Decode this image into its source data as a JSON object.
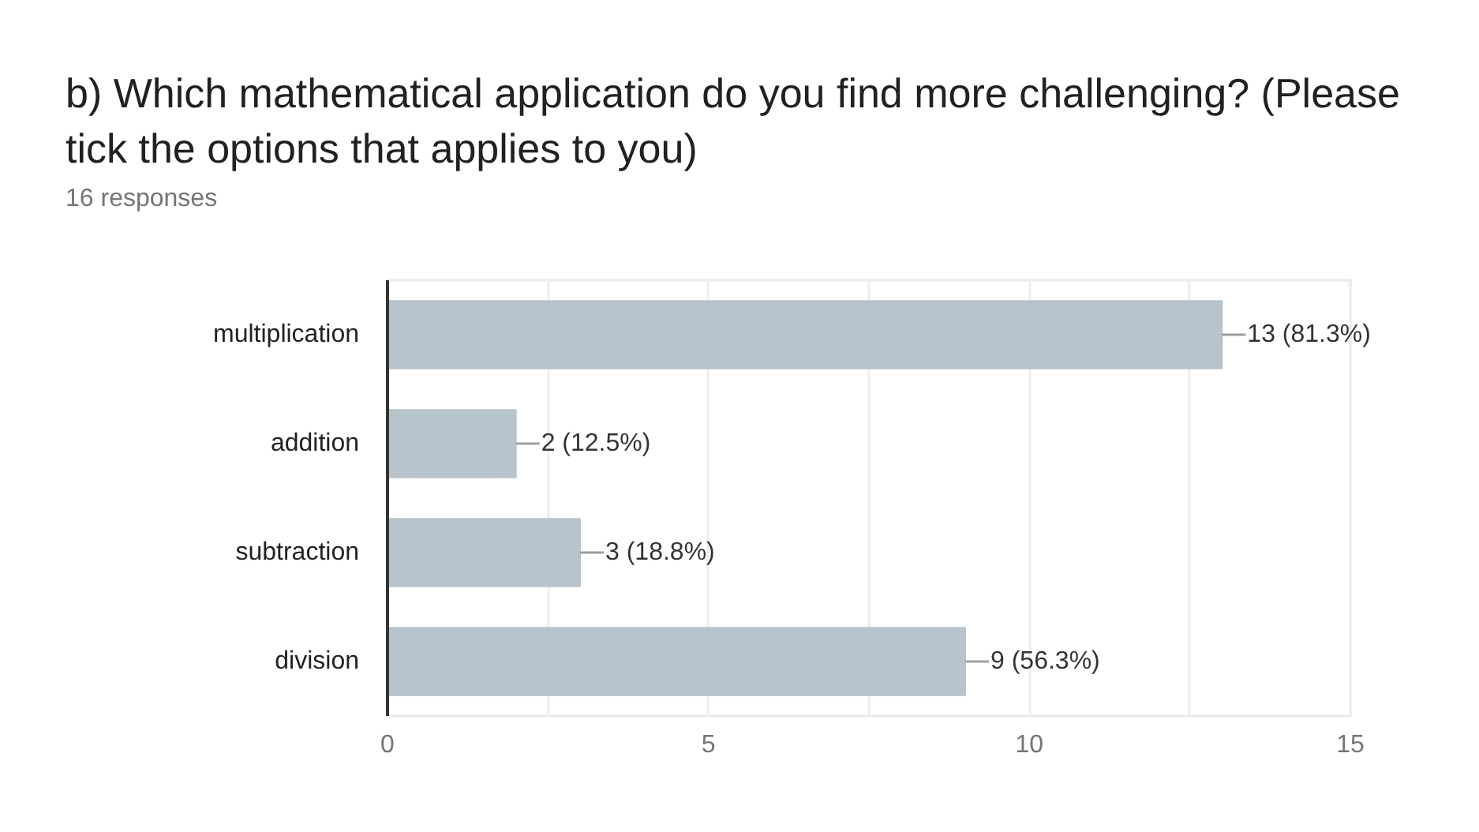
{
  "chart_data": {
    "type": "bar",
    "orientation": "horizontal",
    "title": "b) Which mathematical application do you find more challenging? (Please tick the options that applies to you)",
    "subtitle": "16 responses",
    "categories": [
      "multiplication",
      "addition",
      "subtraction",
      "division"
    ],
    "values": [
      13,
      2,
      3,
      9
    ],
    "value_labels": [
      "13 (81.3%)",
      "2 (12.5%)",
      "3 (18.8%)",
      "9 (56.3%)"
    ],
    "color": "#b7c4cb",
    "xlim": [
      0,
      15
    ],
    "xticks": [
      0,
      {
        "value": 2.5,
        "label": null
      },
      5,
      {
        "value": 7.5,
        "label": null
      },
      10,
      {
        "value": 12.5,
        "label": null
      },
      15
    ],
    "grid": "x"
  }
}
